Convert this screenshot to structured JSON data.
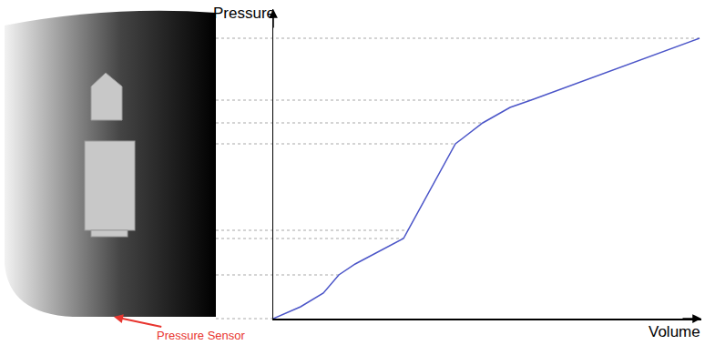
{
  "chart_data": {
    "type": "line",
    "xlabel": "Volume",
    "ylabel": "Pressure",
    "x": [
      0,
      30,
      55,
      72,
      90,
      115,
      143,
      200,
      230,
      260,
      283,
      468
    ],
    "values": [
      0,
      13,
      28,
      48,
      60,
      73,
      88,
      192,
      215,
      232,
      240,
      308
    ],
    "xlim": [
      0,
      470
    ],
    "ylim": [
      0,
      340
    ],
    "color": "#4b55c8",
    "tick_labels": false,
    "grid": false,
    "levels": [
      308,
      240,
      215,
      192,
      97,
      88,
      48,
      0
    ],
    "annotations": [
      {
        "text": "Pressure Sensor"
      }
    ]
  }
}
